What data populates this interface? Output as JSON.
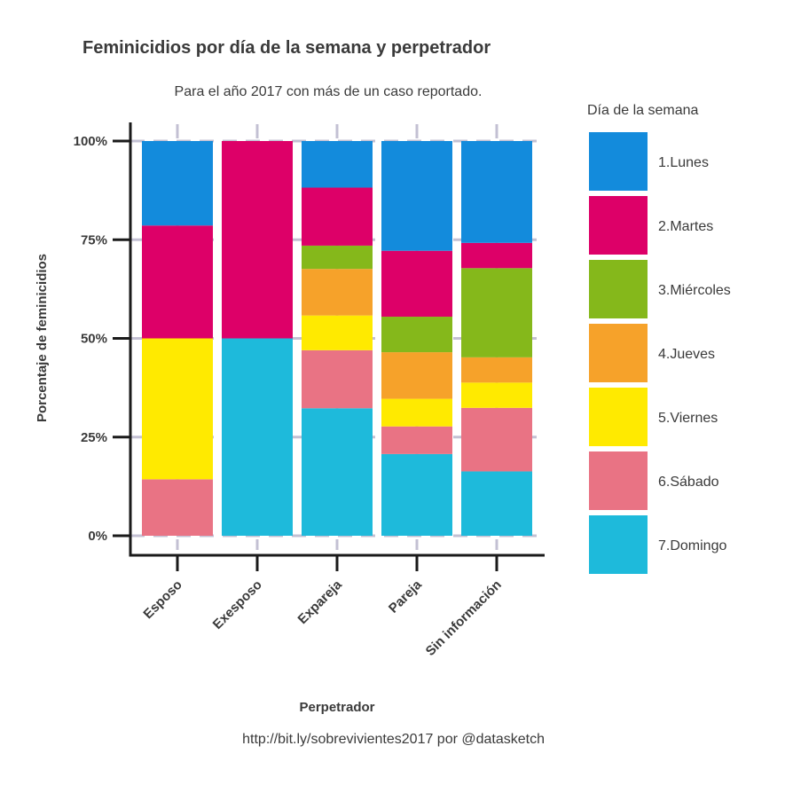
{
  "chart_data": {
    "type": "bar",
    "stacked": true,
    "percent": true,
    "title": "Feminicidios por día de la semana y perpetrador",
    "subtitle": "Para el año 2017 con más de un caso reportado.",
    "xlabel": "Perpetrador",
    "ylabel": "Porcentaje de feminicidios",
    "caption": "http://bit.ly/sobrevivientes2017 por @datasketch",
    "legend_title": "Día de la semana",
    "legend_position": "right",
    "categories": [
      "Esposo",
      "Exesposo",
      "Expareja",
      "Pareja",
      "Sin información"
    ],
    "ylim": [
      0,
      1
    ],
    "yticks": [
      0,
      0.25,
      0.5,
      0.75,
      1
    ],
    "ytick_labels": [
      "0%",
      "25%",
      "50%",
      "75%",
      "100%"
    ],
    "grid": true,
    "series": [
      {
        "name": "1.Lunes",
        "color": "#138bdc",
        "values": [
          0.214,
          0.0,
          0.118,
          0.278,
          0.258
        ]
      },
      {
        "name": "2.Martes",
        "color": "#dd0068",
        "values": [
          0.286,
          0.5,
          0.147,
          0.167,
          0.064
        ]
      },
      {
        "name": "3.Miércoles",
        "color": "#85b81b",
        "values": [
          0.0,
          0.0,
          0.059,
          0.09,
          0.226
        ]
      },
      {
        "name": "4.Jueves",
        "color": "#f6a22a",
        "values": [
          0.0,
          0.0,
          0.118,
          0.118,
          0.064
        ]
      },
      {
        "name": "5.Viernes",
        "color": "#ffea00",
        "values": [
          0.357,
          0.0,
          0.088,
          0.07,
          0.064
        ]
      },
      {
        "name": "6.Sábado",
        "color": "#e97384",
        "values": [
          0.143,
          0.0,
          0.147,
          0.07,
          0.161
        ]
      },
      {
        "name": "7.Domingo",
        "color": "#1ebadb",
        "values": [
          0.0,
          0.5,
          0.323,
          0.207,
          0.163
        ]
      }
    ]
  }
}
